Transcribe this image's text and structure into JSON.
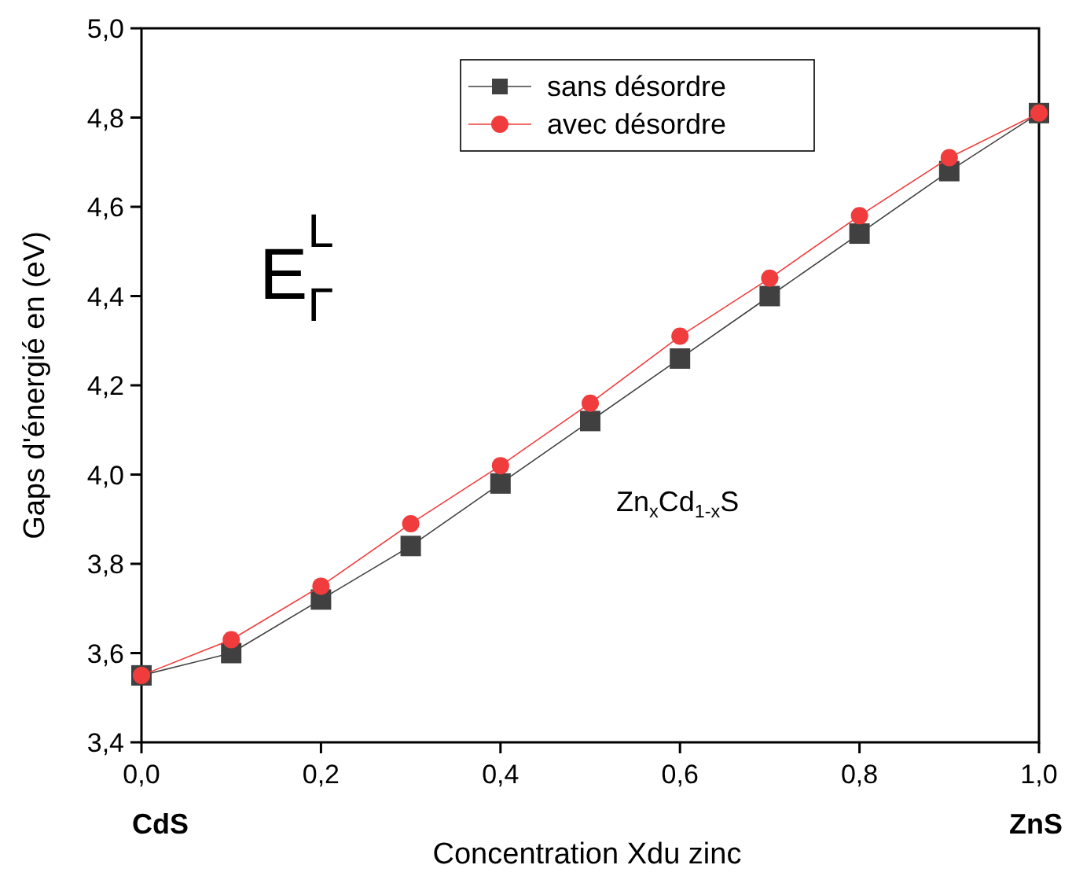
{
  "chart_data": {
    "type": "line",
    "xlabel": "Concentration Xdu zinc",
    "ylabel": "Gaps d'énergié en (eV)",
    "x": [
      0,
      0.1,
      0.2,
      0.3,
      0.4,
      0.5,
      0.6,
      0.7,
      0.8,
      0.9,
      1.0
    ],
    "series": [
      {
        "name": "sans désordre",
        "color": "#404040",
        "marker": "square",
        "values": [
          3.55,
          3.6,
          3.72,
          3.84,
          3.98,
          4.12,
          4.26,
          4.4,
          4.54,
          4.68,
          4.81
        ]
      },
      {
        "name": "avec désordre",
        "color": "#f03c3c",
        "marker": "circle",
        "values": [
          3.55,
          3.63,
          3.75,
          3.89,
          4.02,
          4.16,
          4.31,
          4.44,
          4.58,
          4.71,
          4.81
        ]
      }
    ],
    "xlim": [
      0,
      1
    ],
    "ylim": [
      3.4,
      5.0
    ],
    "xticks": [
      {
        "value": 0,
        "label": "0,0"
      },
      {
        "value": 0.2,
        "label": "0,2"
      },
      {
        "value": 0.4,
        "label": "0,4"
      },
      {
        "value": 0.6,
        "label": "0,6"
      },
      {
        "value": 0.8,
        "label": "0,8"
      },
      {
        "value": 1.0,
        "label": "1,0"
      }
    ],
    "yticks": [
      {
        "value": 3.4,
        "label": "3,4"
      },
      {
        "value": 3.6,
        "label": "3,6"
      },
      {
        "value": 3.8,
        "label": "3,8"
      },
      {
        "value": 4.0,
        "label": "4,0"
      },
      {
        "value": 4.2,
        "label": "4,2"
      },
      {
        "value": 4.4,
        "label": "4,4"
      },
      {
        "value": 4.6,
        "label": "4,6"
      },
      {
        "value": 4.8,
        "label": "4,8"
      },
      {
        "value": 5.0,
        "label": "5,0"
      }
    ],
    "legend": "top",
    "grid": false,
    "line_style": "solid",
    "annotations": [
      "E$_{Γ}$$^{L}$",
      "Zn$_{x}$Cd$_{1-x}$S",
      "CdS",
      "ZnS"
    ]
  }
}
